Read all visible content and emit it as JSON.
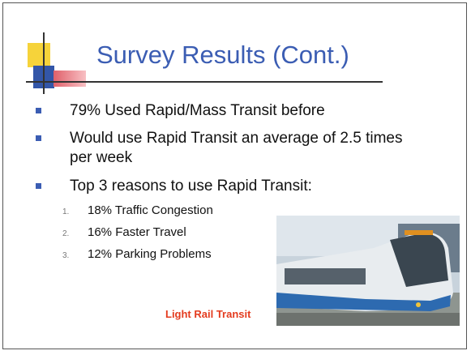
{
  "title": "Survey Results (Cont.)",
  "bullets": [
    {
      "text": "79% Used Rapid/Mass Transit before"
    },
    {
      "text": "Would use Rapid Transit an average of 2.5 times per week"
    },
    {
      "text": "Top 3 reasons to use Rapid Transit:",
      "items": [
        {
          "marker": "1.",
          "text": "18% Traffic Congestion"
        },
        {
          "marker": "2.",
          "text": "16% Faster Travel"
        },
        {
          "marker": "3.",
          "text": "12% Parking Problems"
        }
      ]
    }
  ],
  "image": {
    "caption": "Light Rail Transit"
  }
}
